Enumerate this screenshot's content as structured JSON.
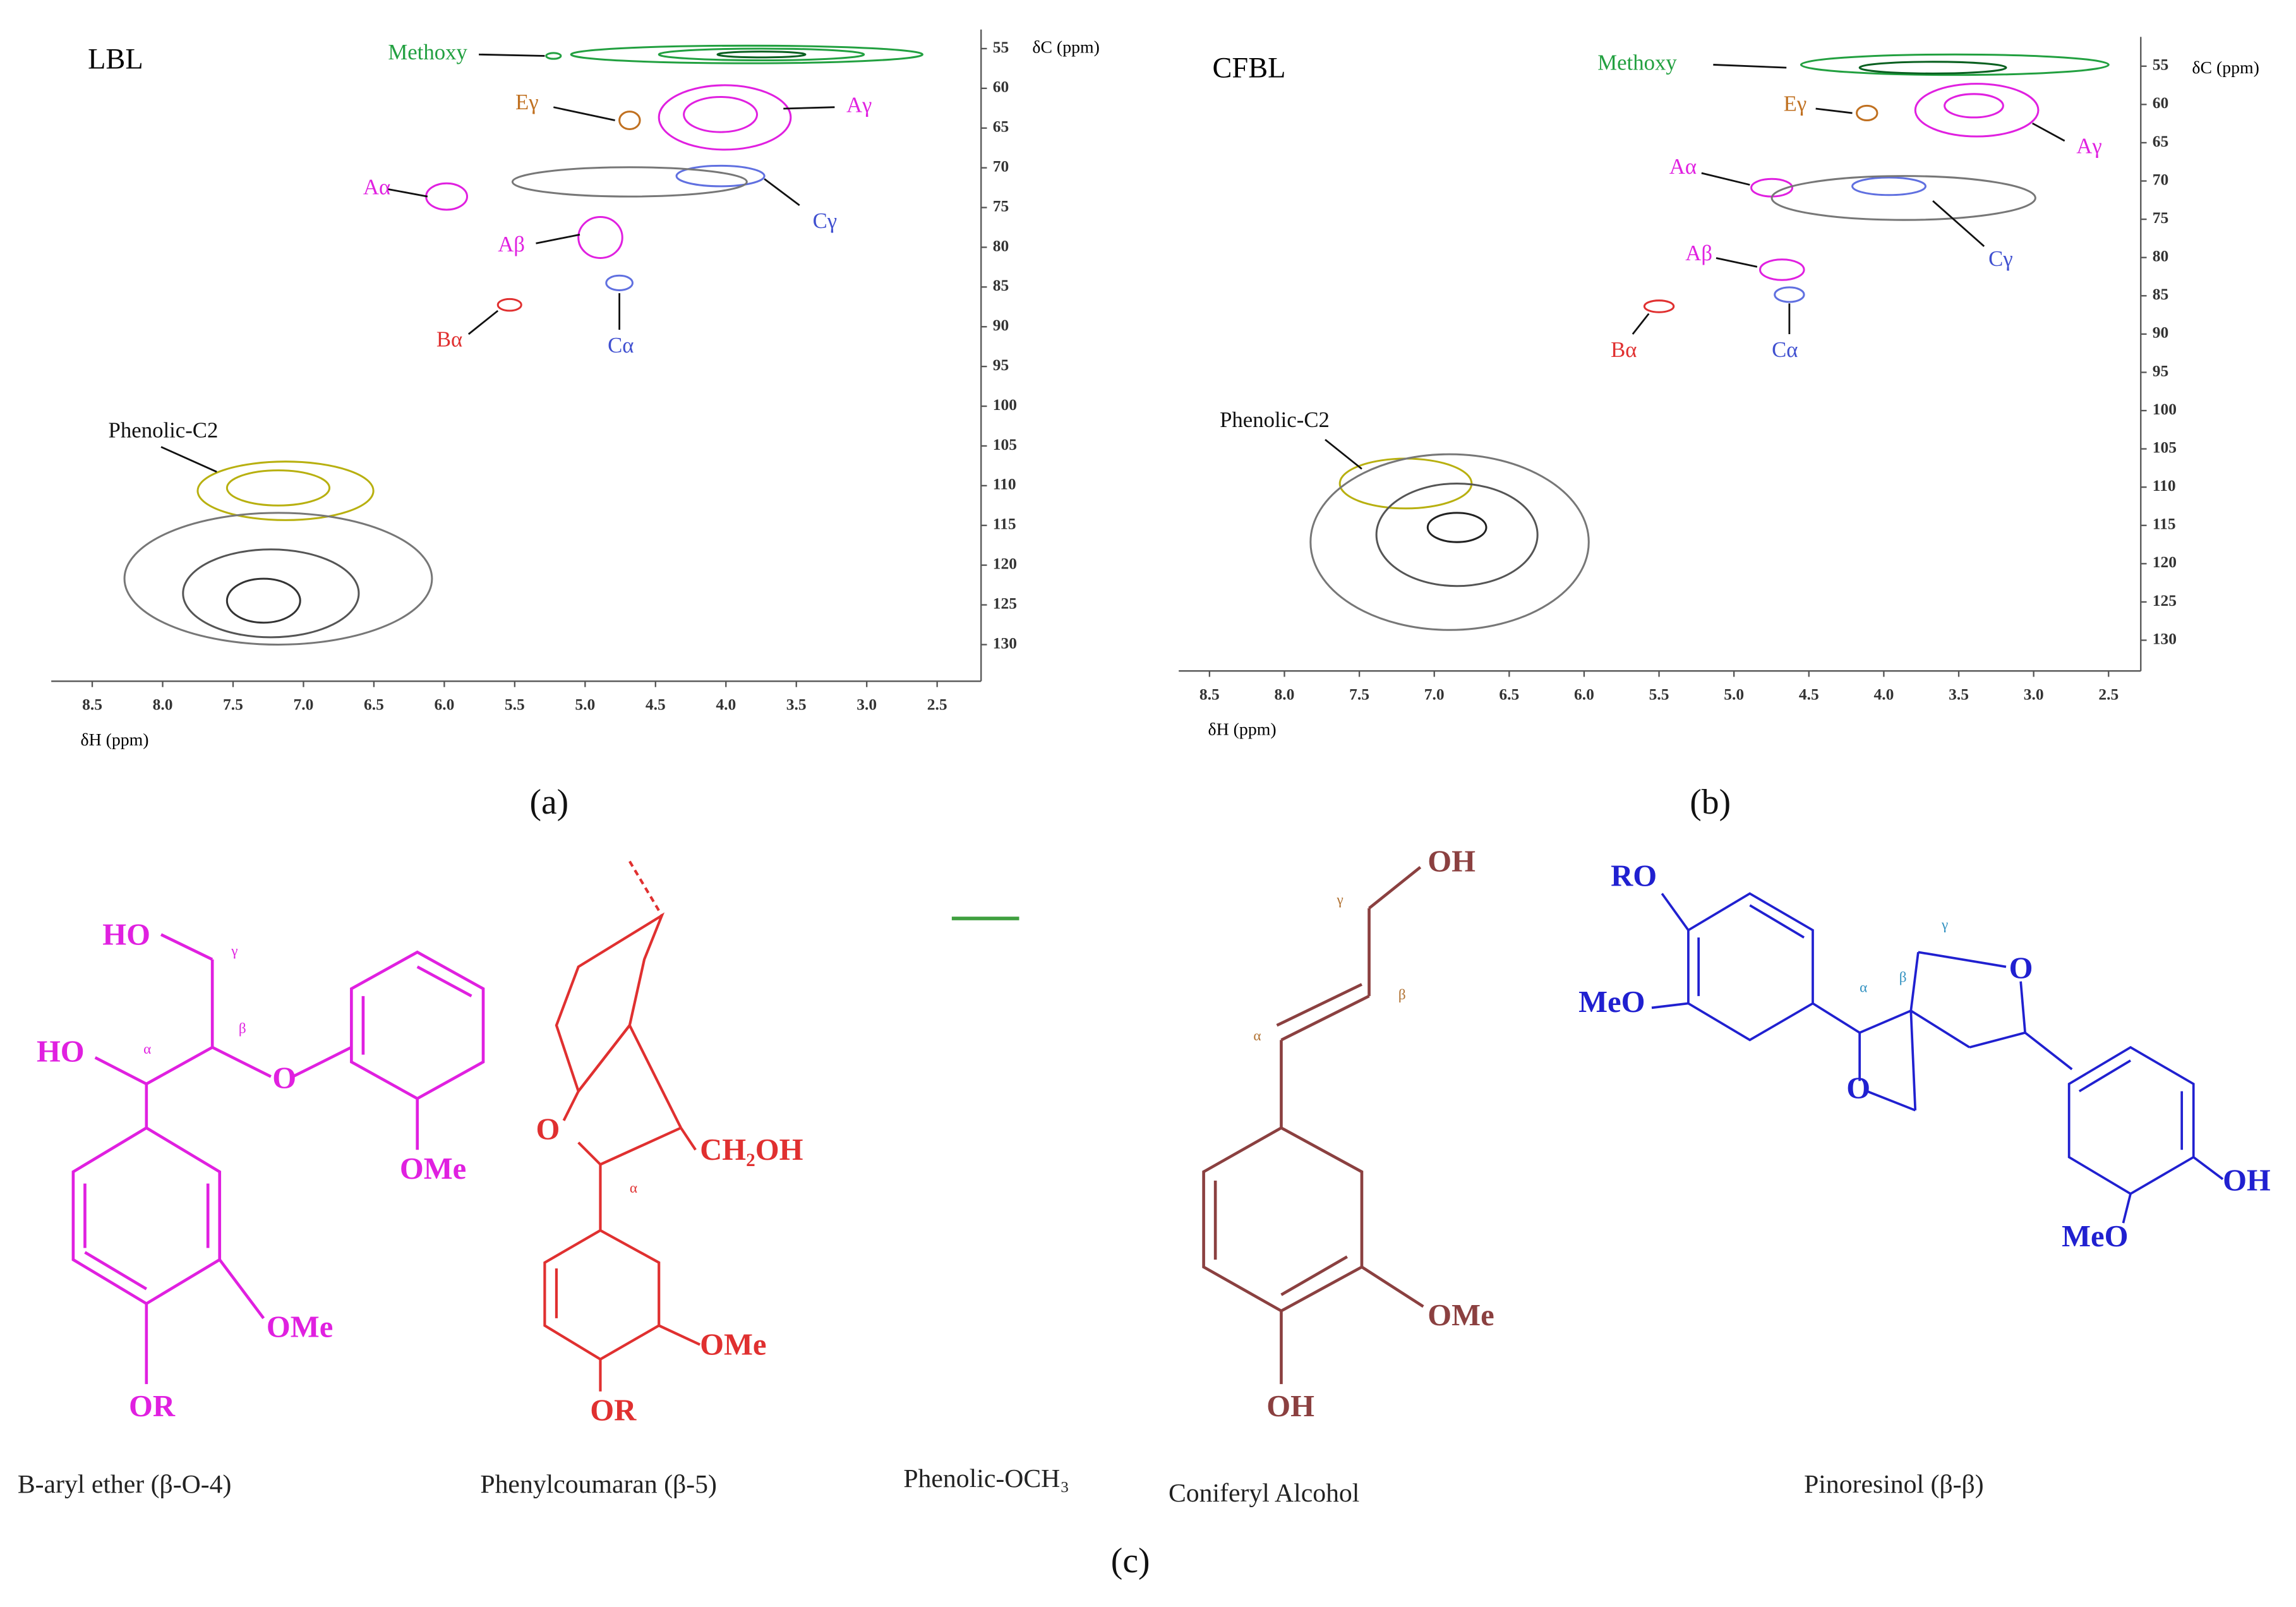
{
  "panels": [
    {
      "label": "(a)",
      "sample": "LBL",
      "y_axis_label": "δC (ppm)",
      "x_axis_label": "δH (ppm)",
      "x_ticks": [
        "8.5",
        "8.0",
        "7.5",
        "7.0",
        "6.5",
        "6.0",
        "5.5",
        "5.0",
        "4.5",
        "4.0",
        "3.5",
        "3.0",
        "2.5"
      ],
      "y_ticks": [
        "55",
        "60",
        "65",
        "70",
        "75",
        "80",
        "85",
        "90",
        "95",
        "100",
        "105",
        "110",
        "115",
        "120",
        "125",
        "130"
      ],
      "annotations": [
        "Methoxy",
        "Eγ",
        "Aγ",
        "Aα",
        "Cγ",
        "Aβ",
        "Bα",
        "Cα",
        "Phenolic-C2"
      ]
    },
    {
      "label": "(b)",
      "sample": "CFBL",
      "y_axis_label": "δC (ppm)",
      "x_axis_label": "δH (ppm)",
      "x_ticks": [
        "8.5",
        "8.0",
        "7.5",
        "7.0",
        "6.5",
        "6.0",
        "5.5",
        "5.0",
        "4.5",
        "4.0",
        "3.5",
        "3.0",
        "2.5"
      ],
      "y_ticks": [
        "55",
        "60",
        "65",
        "70",
        "75",
        "80",
        "85",
        "90",
        "95",
        "100",
        "105",
        "110",
        "115",
        "120",
        "125",
        "130"
      ],
      "annotations": [
        "Methoxy",
        "Eγ",
        "Aγ",
        "Aα",
        "Cγ",
        "Aβ",
        "Bα",
        "Cα",
        "Phenolic-C2"
      ]
    }
  ],
  "structures_panel": {
    "label": "(c)",
    "structures": [
      {
        "name": "B-aryl ether (β-O-4)",
        "atoms": [
          "HO",
          "HO",
          "γ",
          "β",
          "α",
          "O",
          "OMe",
          "OMe",
          "OR"
        ]
      },
      {
        "name": "Phenylcoumaran (β-5)",
        "atoms": [
          "O",
          "α",
          "CH₂OH",
          "OMe",
          "OR"
        ]
      },
      {
        "name": "Phenolic-OCH₃",
        "atoms": []
      },
      {
        "name": "Coniferyl Alcohol",
        "atoms": [
          "OH",
          "γ",
          "β",
          "α",
          "OMe",
          "OH"
        ]
      },
      {
        "name": "Pinoresinol (β-β)",
        "atoms": [
          "RO",
          "MeO",
          "α",
          "β",
          "γ",
          "O",
          "O",
          "OH",
          "MeO"
        ]
      }
    ]
  }
}
